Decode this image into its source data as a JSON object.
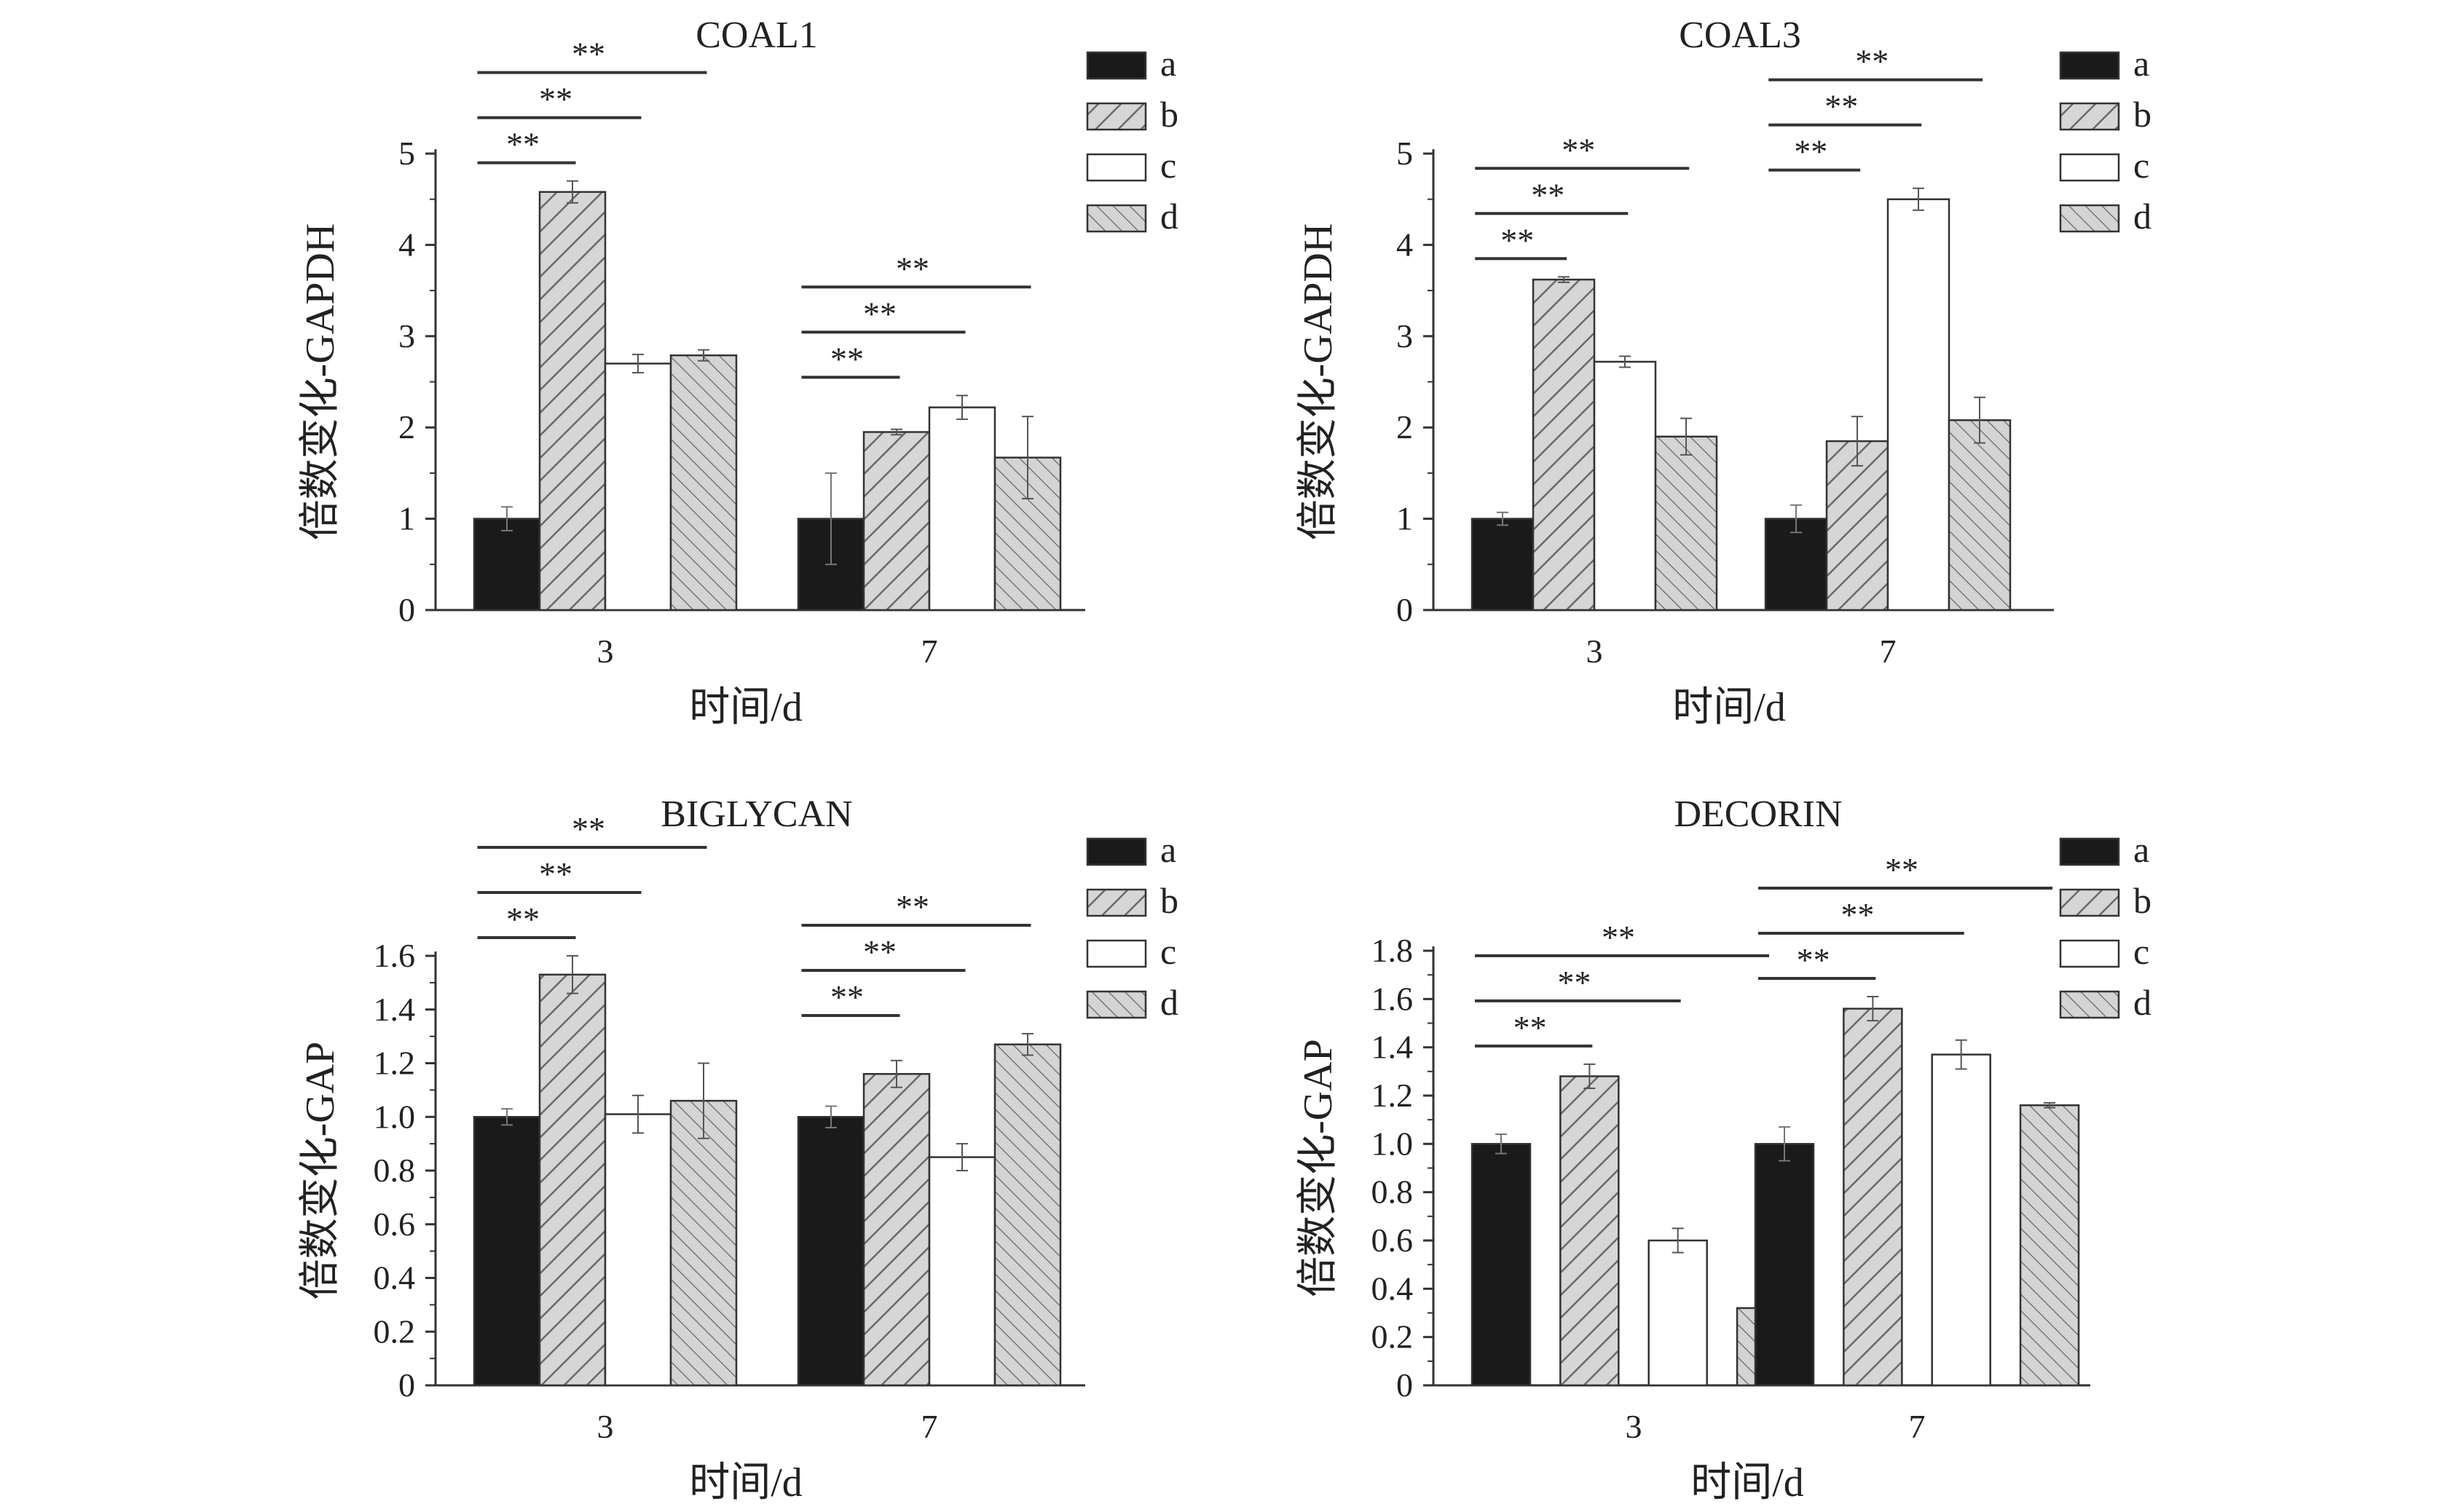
{
  "chart_data": [
    {
      "type": "bar",
      "title": "COAL1",
      "xlabel": "时间/d",
      "ylabel": "倍数变化-GAPDH",
      "categories": [
        "3",
        "7"
      ],
      "yticks": [
        "0",
        "1",
        "2",
        "3",
        "4",
        "5"
      ],
      "ylim": [
        0,
        5
      ],
      "series": [
        {
          "name": "a",
          "values": [
            1.0,
            1.0
          ],
          "errors": [
            0.13,
            0.5
          ]
        },
        {
          "name": "b",
          "values": [
            4.58,
            1.95
          ],
          "errors": [
            0.12,
            0.03
          ]
        },
        {
          "name": "c",
          "values": [
            2.7,
            2.22
          ],
          "errors": [
            0.1,
            0.13
          ]
        },
        {
          "name": "d",
          "values": [
            2.79,
            1.67
          ],
          "errors": [
            0.06,
            0.45
          ]
        }
      ],
      "significance": [
        {
          "category": 0,
          "from": 0,
          "to": 1,
          "label": "**"
        },
        {
          "category": 0,
          "from": 0,
          "to": 2,
          "label": "**"
        },
        {
          "category": 0,
          "from": 0,
          "to": 3,
          "label": "**"
        },
        {
          "category": 1,
          "from": 0,
          "to": 1,
          "label": "**"
        },
        {
          "category": 1,
          "from": 0,
          "to": 2,
          "label": "**"
        },
        {
          "category": 1,
          "from": 0,
          "to": 3,
          "label": "**"
        }
      ],
      "legend_position": "top-right"
    },
    {
      "type": "bar",
      "title": "COAL3",
      "xlabel": "时间/d",
      "ylabel": "倍数变化-GAPDH",
      "categories": [
        "3",
        "7"
      ],
      "yticks": [
        "0",
        "1",
        "2",
        "3",
        "4",
        "5"
      ],
      "ylim": [
        0,
        5
      ],
      "series": [
        {
          "name": "a",
          "values": [
            1.0,
            1.0
          ],
          "errors": [
            0.07,
            0.15
          ]
        },
        {
          "name": "b",
          "values": [
            3.62,
            1.85
          ],
          "errors": [
            0.03,
            0.27
          ]
        },
        {
          "name": "c",
          "values": [
            2.72,
            4.5
          ],
          "errors": [
            0.06,
            0.12
          ]
        },
        {
          "name": "d",
          "values": [
            1.9,
            2.08
          ],
          "errors": [
            0.2,
            0.25
          ]
        }
      ],
      "significance": [
        {
          "category": 0,
          "from": 0,
          "to": 1,
          "label": "**"
        },
        {
          "category": 0,
          "from": 0,
          "to": 2,
          "label": "**"
        },
        {
          "category": 0,
          "from": 0,
          "to": 3,
          "label": "**"
        },
        {
          "category": 1,
          "from": 0,
          "to": 1,
          "label": "**"
        },
        {
          "category": 1,
          "from": 0,
          "to": 2,
          "label": "**"
        },
        {
          "category": 1,
          "from": 0,
          "to": 3,
          "label": "**"
        }
      ],
      "legend_position": "top-right"
    },
    {
      "type": "bar",
      "title": "BIGLYCAN",
      "xlabel": "时间/d",
      "ylabel": "倍数变化-GAP",
      "categories": [
        "3",
        "7"
      ],
      "yticks": [
        "0",
        "0.2",
        "0.4",
        "0.6",
        "0.8",
        "1.0",
        "1.2",
        "1.4",
        "1.6"
      ],
      "ylim": [
        0,
        1.6
      ],
      "series": [
        {
          "name": "a",
          "values": [
            1.0,
            1.0
          ],
          "errors": [
            0.03,
            0.04
          ]
        },
        {
          "name": "b",
          "values": [
            1.53,
            1.16
          ],
          "errors": [
            0.07,
            0.05
          ]
        },
        {
          "name": "c",
          "values": [
            1.01,
            0.85
          ],
          "errors": [
            0.07,
            0.05
          ]
        },
        {
          "name": "d",
          "values": [
            1.06,
            1.27
          ],
          "errors": [
            0.14,
            0.04
          ]
        }
      ],
      "significance": [
        {
          "category": 0,
          "from": 0,
          "to": 1,
          "label": "**"
        },
        {
          "category": 0,
          "from": 0,
          "to": 2,
          "label": "**"
        },
        {
          "category": 0,
          "from": 0,
          "to": 3,
          "label": "**"
        },
        {
          "category": 1,
          "from": 0,
          "to": 1,
          "label": "**"
        },
        {
          "category": 1,
          "from": 0,
          "to": 2,
          "label": "**"
        },
        {
          "category": 1,
          "from": 0,
          "to": 3,
          "label": "**"
        }
      ],
      "legend_position": "top-right"
    },
    {
      "type": "bar",
      "title": "DECORIN",
      "xlabel": "时间/d",
      "ylabel": "倍数变化-GAP",
      "categories": [
        "3",
        "7"
      ],
      "yticks": [
        "0",
        "0.2",
        "0.4",
        "0.6",
        "0.8",
        "1.0",
        "1.2",
        "1.4",
        "1.6",
        "1.8"
      ],
      "ylim": [
        0,
        1.8
      ],
      "series": [
        {
          "name": "a",
          "values": [
            1.0,
            1.0
          ],
          "errors": [
            0.04,
            0.07
          ]
        },
        {
          "name": "b",
          "values": [
            1.28,
            1.56
          ],
          "errors": [
            0.05,
            0.05
          ]
        },
        {
          "name": "c",
          "values": [
            0.6,
            1.37
          ],
          "errors": [
            0.05,
            0.06
          ]
        },
        {
          "name": "d",
          "values": [
            0.32,
            1.16
          ],
          "errors": [
            0.04,
            0.01
          ]
        }
      ],
      "significance": [
        {
          "category": 0,
          "from": 0,
          "to": 1,
          "label": "**"
        },
        {
          "category": 0,
          "from": 0,
          "to": 2,
          "label": "**"
        },
        {
          "category": 0,
          "from": 0,
          "to": 3,
          "label": "**"
        },
        {
          "category": 1,
          "from": 0,
          "to": 1,
          "label": "**"
        },
        {
          "category": 1,
          "from": 0,
          "to": 2,
          "label": "**"
        },
        {
          "category": 1,
          "from": 0,
          "to": 3,
          "label": "**"
        }
      ],
      "legend_position": "top-right"
    }
  ],
  "colors": {
    "a": "#1a1a1a",
    "b": "#d0d0d0",
    "c": "#ffffff",
    "d": "#cfcfcf",
    "stroke": "#333333",
    "bracket": "#333333"
  }
}
